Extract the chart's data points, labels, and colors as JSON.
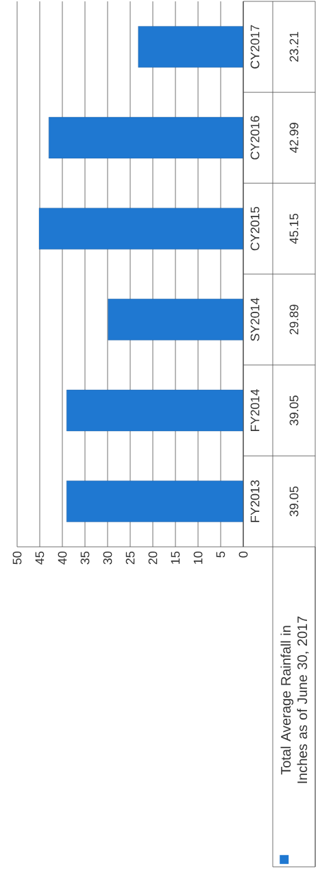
{
  "chart_data": {
    "type": "bar",
    "orientation": "horizontal",
    "categories": [
      "CY2017",
      "CY2016",
      "CY2015",
      "SY2014",
      "FY2014",
      "FY2013"
    ],
    "series": [
      {
        "name": "Total Average Rainfall in Inches as of June 30, 2017",
        "color": "#1f78d1",
        "values": [
          23.21,
          42.99,
          45.15,
          29.89,
          39.05,
          39.05
        ]
      }
    ],
    "xlim": [
      50,
      0
    ],
    "xticks": [
      0,
      5,
      10,
      15,
      20,
      25,
      30,
      35,
      40,
      45,
      50
    ],
    "grid": "x",
    "legend": "bottom",
    "data_labels": true
  }
}
